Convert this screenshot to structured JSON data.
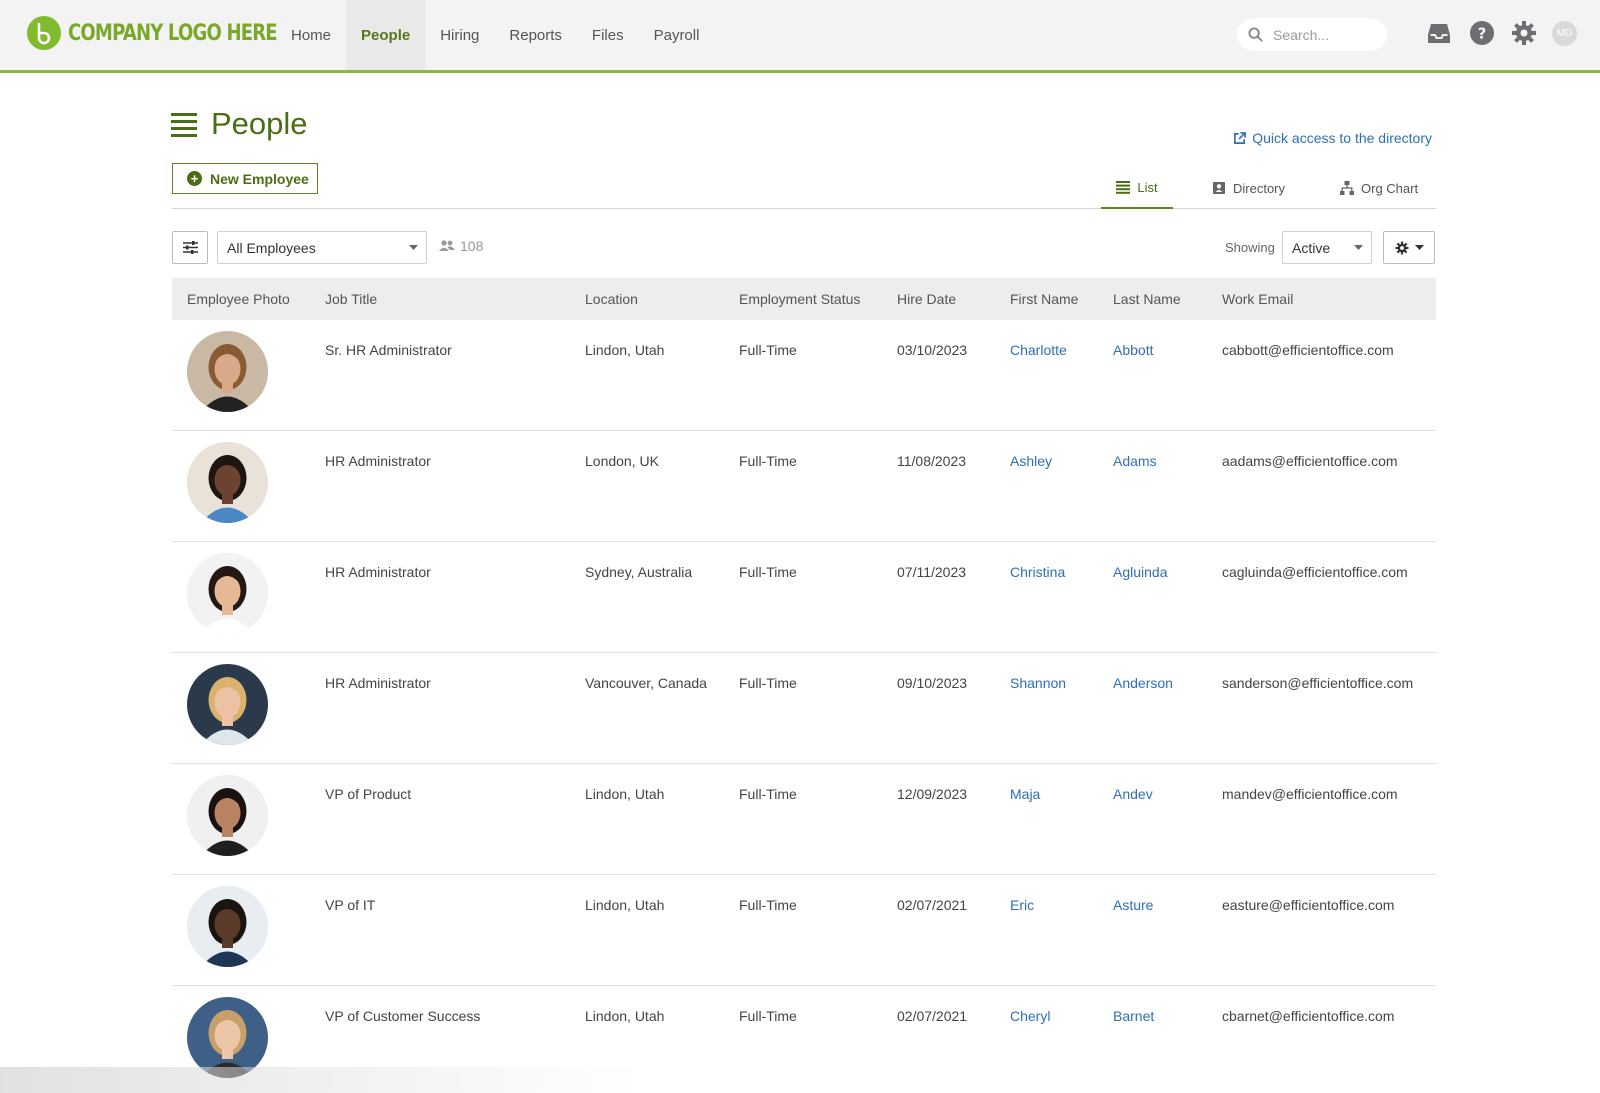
{
  "logo": {
    "text": "COMPANY LOGO HERE",
    "color": "#7fbb2d"
  },
  "nav": {
    "items": [
      {
        "label": "Home",
        "active": false
      },
      {
        "label": "People",
        "active": true
      },
      {
        "label": "Hiring",
        "active": false
      },
      {
        "label": "Reports",
        "active": false
      },
      {
        "label": "Files",
        "active": false
      },
      {
        "label": "Payroll",
        "active": false
      }
    ],
    "search_placeholder": "Search...",
    "icons": [
      "inbox-icon",
      "help-icon",
      "settings-icon"
    ],
    "user_initials": "MD"
  },
  "page": {
    "title": "People",
    "quick_link": "Quick access to the directory",
    "new_employee_label": "New Employee"
  },
  "tabs": [
    {
      "label": "List",
      "icon": "list-icon",
      "active": true
    },
    {
      "label": "Directory",
      "icon": "contact-card-icon",
      "active": false
    },
    {
      "label": "Org Chart",
      "icon": "org-chart-icon",
      "active": false
    }
  ],
  "filters": {
    "group_value": "All Employees",
    "employee_count": "108",
    "showing_label": "Showing",
    "status_value": "Active"
  },
  "table": {
    "columns": [
      "Employee Photo",
      "Job Title",
      "Location",
      "Employment Status",
      "Hire Date",
      "First Name",
      "Last Name",
      "Work Email"
    ],
    "rows": [
      {
        "job_title": "Sr. HR Administrator",
        "location": "Lindon, Utah",
        "status": "Full-Time",
        "hire_date": "03/10/2023",
        "first_name": "Charlotte",
        "last_name": "Abbott",
        "email": "cabbott@efficientoffice.com",
        "skin": "#d8a98a",
        "hair": "#8a5a32",
        "bg": "#c9b9a4",
        "shirt": "#222222"
      },
      {
        "job_title": "HR Administrator",
        "location": "London, UK",
        "status": "Full-Time",
        "hire_date": "11/08/2023",
        "first_name": "Ashley",
        "last_name": "Adams",
        "email": "aadams@efficientoffice.com",
        "skin": "#6b4330",
        "hair": "#1e1410",
        "bg": "#e8e2d8",
        "shirt": "#4b87c5"
      },
      {
        "job_title": "HR Administrator",
        "location": "Sydney, Australia",
        "status": "Full-Time",
        "hire_date": "07/11/2023",
        "first_name": "Christina",
        "last_name": "Agluinda",
        "email": "cagluinda@efficientoffice.com",
        "skin": "#e6b996",
        "hair": "#231812",
        "bg": "#f2f2f2",
        "shirt": "#ffffff"
      },
      {
        "job_title": "HR Administrator",
        "location": "Vancouver, Canada",
        "status": "Full-Time",
        "hire_date": "09/10/2023",
        "first_name": "Shannon",
        "last_name": "Anderson",
        "email": "sanderson@efficientoffice.com",
        "skin": "#edc1a3",
        "hair": "#d9b26d",
        "bg": "#2b3a4a",
        "shirt": "#dfe7ee"
      },
      {
        "job_title": "VP of Product",
        "location": "Lindon, Utah",
        "status": "Full-Time",
        "hire_date": "12/09/2023",
        "first_name": "Maja",
        "last_name": "Andev",
        "email": "mandev@efficientoffice.com",
        "skin": "#b98263",
        "hair": "#1a1210",
        "bg": "#f0f0f0",
        "shirt": "#1f1f1f"
      },
      {
        "job_title": "VP of IT",
        "location": "Lindon, Utah",
        "status": "Full-Time",
        "hire_date": "02/07/2021",
        "first_name": "Eric",
        "last_name": "Asture",
        "email": "easture@efficientoffice.com",
        "skin": "#5a3a28",
        "hair": "#1b1310",
        "bg": "#e8edf2",
        "shirt": "#1f3556"
      },
      {
        "job_title": "VP of Customer Success",
        "location": "Lindon, Utah",
        "status": "Full-Time",
        "hire_date": "02/07/2021",
        "first_name": "Cheryl",
        "last_name": "Barnet",
        "email": "cbarnet@efficientoffice.com",
        "skin": "#edc6a8",
        "hair": "#c7a06b",
        "bg": "#3e5f86",
        "shirt": "#2a2a2a"
      }
    ]
  }
}
